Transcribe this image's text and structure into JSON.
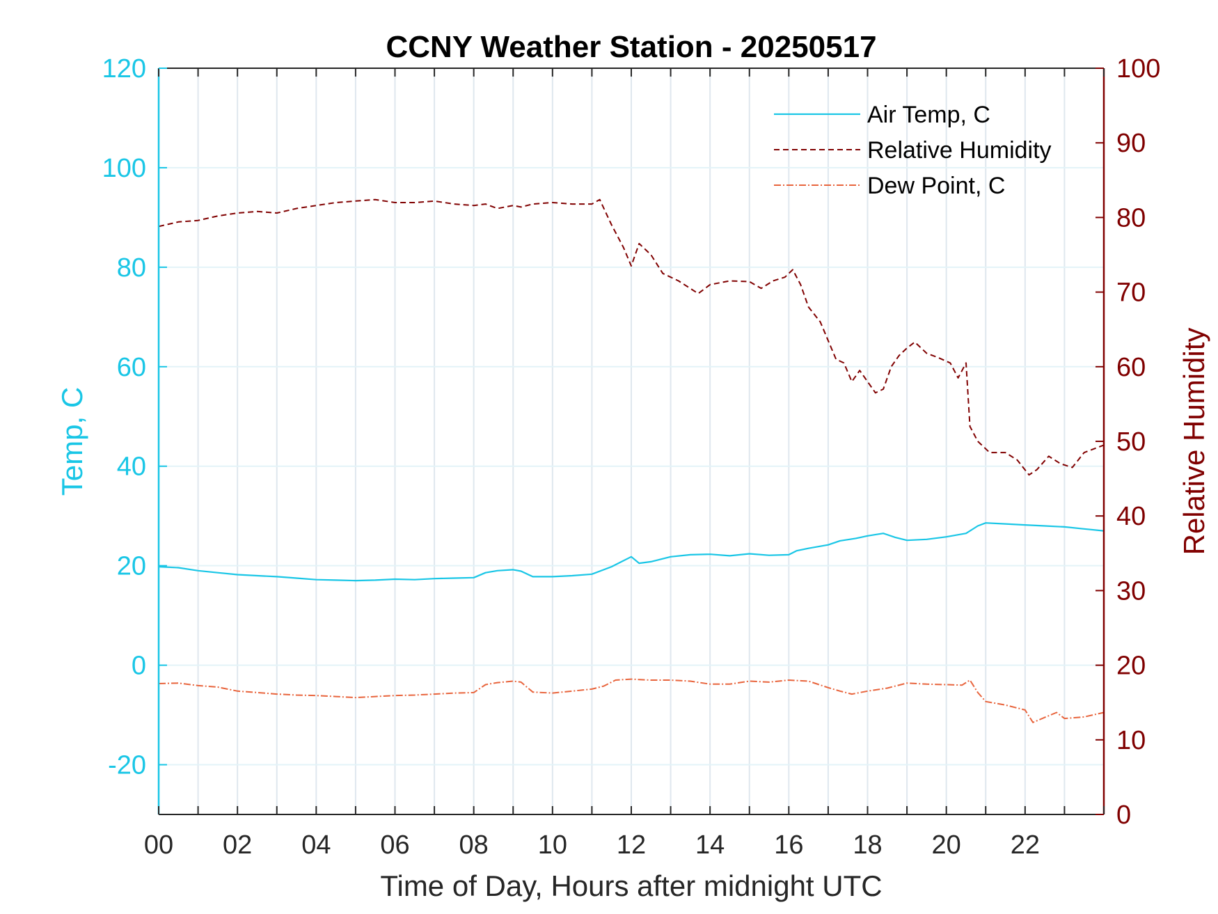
{
  "chart_data": {
    "type": "line",
    "title": "CCNY Weather Station - 20250517",
    "xlabel": "Time of Day, Hours after midnight UTC",
    "ylabel_left": "Temp, C",
    "ylabel_right": "Relative Humidity",
    "xlim": [
      0,
      24
    ],
    "ylim_left": [
      -30,
      120
    ],
    "ylim_right": [
      0,
      100
    ],
    "x_ticks": [
      "00",
      "02",
      "04",
      "06",
      "08",
      "10",
      "12",
      "14",
      "16",
      "18",
      "20",
      "22"
    ],
    "y_ticks_left": [
      "-20",
      "0",
      "20",
      "40",
      "60",
      "80",
      "100",
      "120"
    ],
    "y_ticks_right": [
      "0",
      "10",
      "20",
      "30",
      "40",
      "50",
      "60",
      "70",
      "80",
      "90",
      "100"
    ],
    "grid": true,
    "legend_position": "top-right",
    "colors": {
      "left_axis": "#19c6e6",
      "right_axis": "#800000",
      "dew_point": "#e8643c",
      "grid": "#dfe7ee"
    },
    "series": [
      {
        "name": "Air Temp, C",
        "axis": "left",
        "style": "solid",
        "color": "#19c6e6",
        "x": [
          0,
          0.5,
          1,
          1.5,
          2,
          2.5,
          3,
          3.5,
          4,
          4.5,
          5,
          5.5,
          6,
          6.5,
          7,
          7.5,
          8,
          8.3,
          8.6,
          9,
          9.2,
          9.5,
          10,
          10.5,
          11,
          11.5,
          12,
          12.2,
          12.5,
          13,
          13.5,
          14,
          14.5,
          15,
          15.5,
          16,
          16.2,
          16.5,
          17,
          17.3,
          17.7,
          18,
          18.4,
          18.7,
          19,
          19.5,
          20,
          20.5,
          20.8,
          21,
          21.5,
          22,
          22.5,
          23,
          23.5,
          24
        ],
        "values": [
          19.8,
          19.6,
          19.0,
          18.6,
          18.2,
          18.0,
          17.8,
          17.5,
          17.2,
          17.1,
          17.0,
          17.1,
          17.3,
          17.2,
          17.4,
          17.5,
          17.6,
          18.6,
          19.0,
          19.2,
          18.9,
          17.8,
          17.8,
          18.0,
          18.3,
          19.8,
          21.8,
          20.5,
          20.8,
          21.8,
          22.2,
          22.3,
          22.0,
          22.4,
          22.1,
          22.2,
          23.0,
          23.5,
          24.2,
          25.0,
          25.5,
          26.0,
          26.5,
          25.7,
          25.1,
          25.3,
          25.8,
          26.5,
          28.0,
          28.6,
          28.4,
          28.2,
          28.0,
          27.8,
          27.4,
          27.0
        ]
      },
      {
        "name": "Relative Humidity",
        "axis": "right",
        "style": "dashed",
        "color": "#800000",
        "x": [
          0,
          0.5,
          1,
          1.5,
          2,
          2.5,
          3,
          3.5,
          4,
          4.5,
          5,
          5.5,
          6,
          6.5,
          7,
          7.5,
          8,
          8.3,
          8.6,
          9,
          9.2,
          9.5,
          10,
          10.5,
          11,
          11.2,
          11.5,
          11.8,
          12.0,
          12.2,
          12.5,
          12.8,
          13.2,
          13.7,
          14,
          14.5,
          15,
          15.3,
          15.6,
          15.9,
          16.1,
          16.3,
          16.5,
          16.8,
          17,
          17.2,
          17.4,
          17.6,
          17.8,
          18.2,
          18.4,
          18.6,
          18.8,
          19.0,
          19.2,
          19.5,
          19.8,
          20.1,
          20.3,
          20.5,
          20.6,
          20.8,
          21.1,
          21.5,
          21.8,
          22.1,
          22.3,
          22.6,
          22.9,
          23.2,
          23.5,
          24
        ],
        "values": [
          78.8,
          79.4,
          79.6,
          80.2,
          80.6,
          80.8,
          80.6,
          81.2,
          81.6,
          82.0,
          82.2,
          82.4,
          82.0,
          82.0,
          82.2,
          81.8,
          81.6,
          81.8,
          81.2,
          81.6,
          81.4,
          81.8,
          82.0,
          81.8,
          81.8,
          82.4,
          79.0,
          76.0,
          73.5,
          76.5,
          75.0,
          72.5,
          71.5,
          69.8,
          71.0,
          71.5,
          71.4,
          70.5,
          71.5,
          72.0,
          73.0,
          71.0,
          68.0,
          66.0,
          63.5,
          61.0,
          60.5,
          58.0,
          59.5,
          56.5,
          57.0,
          60.0,
          61.5,
          62.5,
          63.3,
          61.8,
          61.2,
          60.5,
          58.5,
          60.5,
          52.0,
          50.0,
          48.5,
          48.5,
          47.5,
          45.5,
          46.2,
          48.0,
          47.0,
          46.5,
          48.5,
          49.5
        ]
      },
      {
        "name": "Dew Point, C",
        "axis": "left",
        "style": "dashdot",
        "color": "#e8643c",
        "x": [
          0,
          0.5,
          1,
          1.5,
          2,
          2.5,
          3,
          3.5,
          4,
          4.5,
          5,
          5.5,
          6,
          6.5,
          7,
          7.5,
          8,
          8.3,
          8.6,
          9,
          9.2,
          9.5,
          10,
          10.5,
          11,
          11.3,
          11.6,
          12,
          12.5,
          13,
          13.5,
          14,
          14.5,
          15,
          15.5,
          16,
          16.5,
          17,
          17.3,
          17.6,
          18,
          18.5,
          19,
          19.5,
          20,
          20.4,
          20.6,
          20.8,
          21,
          21.5,
          22,
          22.2,
          22.5,
          22.8,
          23,
          23.5,
          24
        ],
        "values": [
          -3.7,
          -3.6,
          -4.1,
          -4.4,
          -5.2,
          -5.5,
          -5.8,
          -6.0,
          -6.1,
          -6.3,
          -6.5,
          -6.3,
          -6.1,
          -6.0,
          -5.8,
          -5.6,
          -5.5,
          -3.9,
          -3.5,
          -3.2,
          -3.4,
          -5.4,
          -5.6,
          -5.2,
          -4.8,
          -4.2,
          -3.0,
          -2.8,
          -3.0,
          -3.0,
          -3.2,
          -3.8,
          -3.8,
          -3.2,
          -3.4,
          -3.0,
          -3.2,
          -4.5,
          -5.2,
          -5.8,
          -5.2,
          -4.6,
          -3.6,
          -3.8,
          -3.9,
          -4.0,
          -3.0,
          -5.5,
          -7.3,
          -8.0,
          -9.0,
          -11.5,
          -10.5,
          -9.5,
          -10.7,
          -10.4,
          -9.5
        ]
      }
    ]
  }
}
